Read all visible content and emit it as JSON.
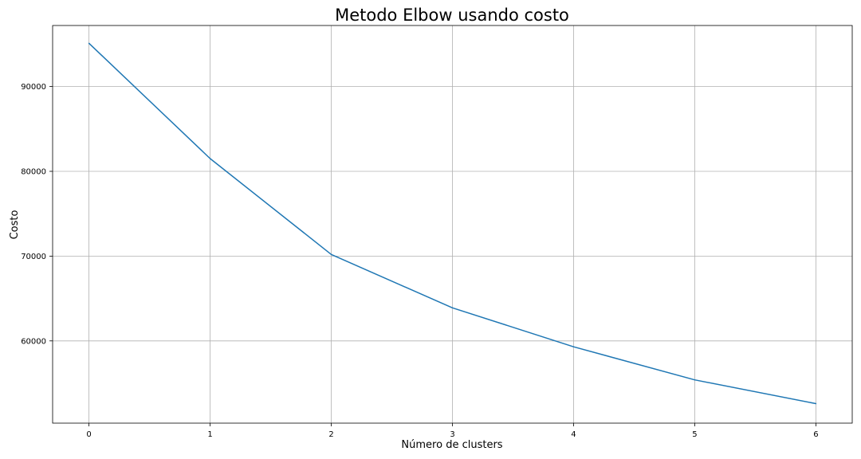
{
  "chart_data": {
    "type": "line",
    "title": "Metodo Elbow usando costo",
    "xlabel": "Número de clusters",
    "ylabel": "Costo",
    "x": [
      0,
      1,
      2,
      3,
      4,
      5,
      6
    ],
    "series": [
      {
        "values": [
          95100,
          81500,
          70200,
          63900,
          59300,
          55400,
          52600
        ],
        "color": "#1f77b4"
      }
    ],
    "xlim": [
      -0.3,
      6.3
    ],
    "ylim": [
      50300,
      97200
    ],
    "xticks": [
      0,
      1,
      2,
      3,
      4,
      5,
      6
    ],
    "yticks": [
      60000,
      70000,
      80000,
      90000
    ],
    "grid": true,
    "legend": "none"
  }
}
